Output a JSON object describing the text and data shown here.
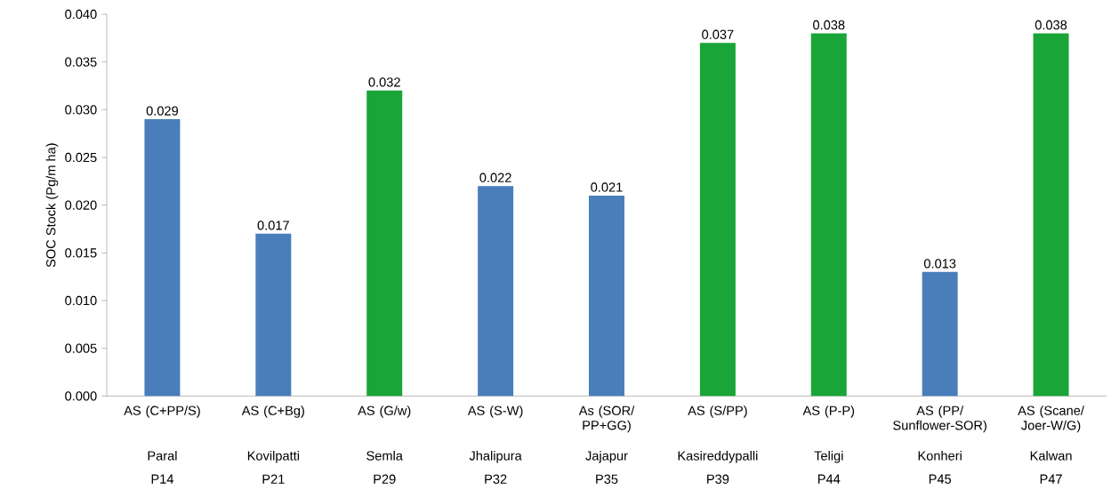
{
  "chart_data": {
    "type": "bar",
    "ylabel": "SOC Stock (Pg/m ha)",
    "categories": [
      "AS (C+PP/S)",
      "AS (C+Bg)",
      "AS (G/w)",
      "AS (S-W)",
      "As (SOR/ PP+GG)",
      "AS (S/PP)",
      "AS (P-P)",
      "AS (PP/ Sunflower-SOR)",
      "AS (Scane/ Joer-W/G)"
    ],
    "values": [
      0.029,
      0.017,
      0.032,
      0.022,
      0.021,
      0.037,
      0.038,
      0.013,
      0.038
    ],
    "value_labels": [
      "0.029",
      "0.017",
      "0.032",
      "0.022",
      "0.021",
      "0.037",
      "0.038",
      "0.013",
      "0.038"
    ],
    "colors": [
      "#4a7ebb",
      "#4a7ebb",
      "#1aa538",
      "#4a7ebb",
      "#4a7ebb",
      "#1aa538",
      "#1aa538",
      "#4a7ebb",
      "#1aa538"
    ],
    "ylim": [
      0,
      0.04
    ],
    "yticks": [
      {
        "value": 0,
        "label": "0.000"
      },
      {
        "value": 0.005,
        "label": "0.005"
      },
      {
        "value": 0.01,
        "label": "0.010"
      },
      {
        "value": 0.015,
        "label": "0.015"
      },
      {
        "value": 0.02,
        "label": "0.020"
      },
      {
        "value": 0.025,
        "label": "0.025"
      },
      {
        "value": 0.03,
        "label": "0.030"
      },
      {
        "value": 0.035,
        "label": "0.035"
      },
      {
        "value": 0.04,
        "label": "0.040"
      }
    ],
    "grid": false,
    "annotations": [
      "Paral",
      "Kovilpatti",
      "Semla",
      "Jhalipura",
      "Jajapur",
      "Kasireddypalli",
      "Teligi",
      "Konheri",
      "Kalwan",
      "P14",
      "P21",
      "P29",
      "P32",
      "P35",
      "P39",
      "P44",
      "P45",
      "P47"
    ]
  }
}
